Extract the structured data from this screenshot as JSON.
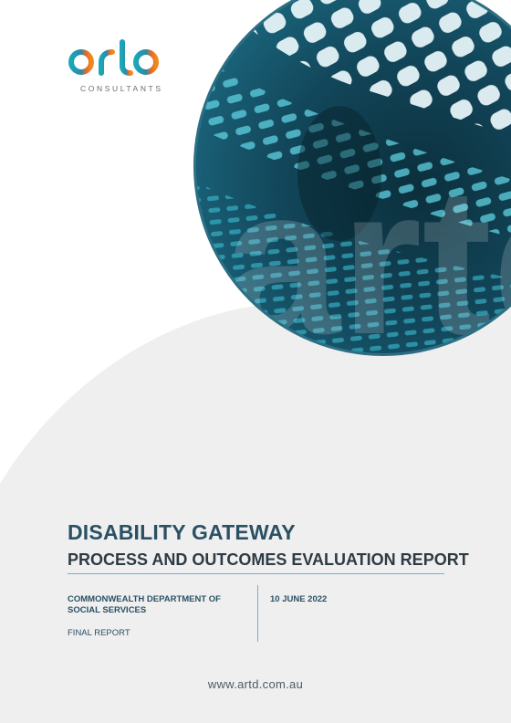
{
  "brand": {
    "logo_word": "artd",
    "logo_subtitle": "CONSULTANTS",
    "colors": {
      "teal": "#1aa7b8",
      "orange": "#f08a1c",
      "navy": "#2a5163"
    }
  },
  "cover": {
    "title": "DISABILITY GATEWAY",
    "subtitle": "PROCESS AND OUTCOMES EVALUATION REPORT",
    "client": "COMMONWEALTH DEPARTMENT OF SOCIAL SERVICES",
    "date": "10 JUNE 2022",
    "status": "FINAL REPORT",
    "website": "www.artd.com.au"
  },
  "hero_image": {
    "description_icon": "architectural-mesh-circle-image"
  }
}
